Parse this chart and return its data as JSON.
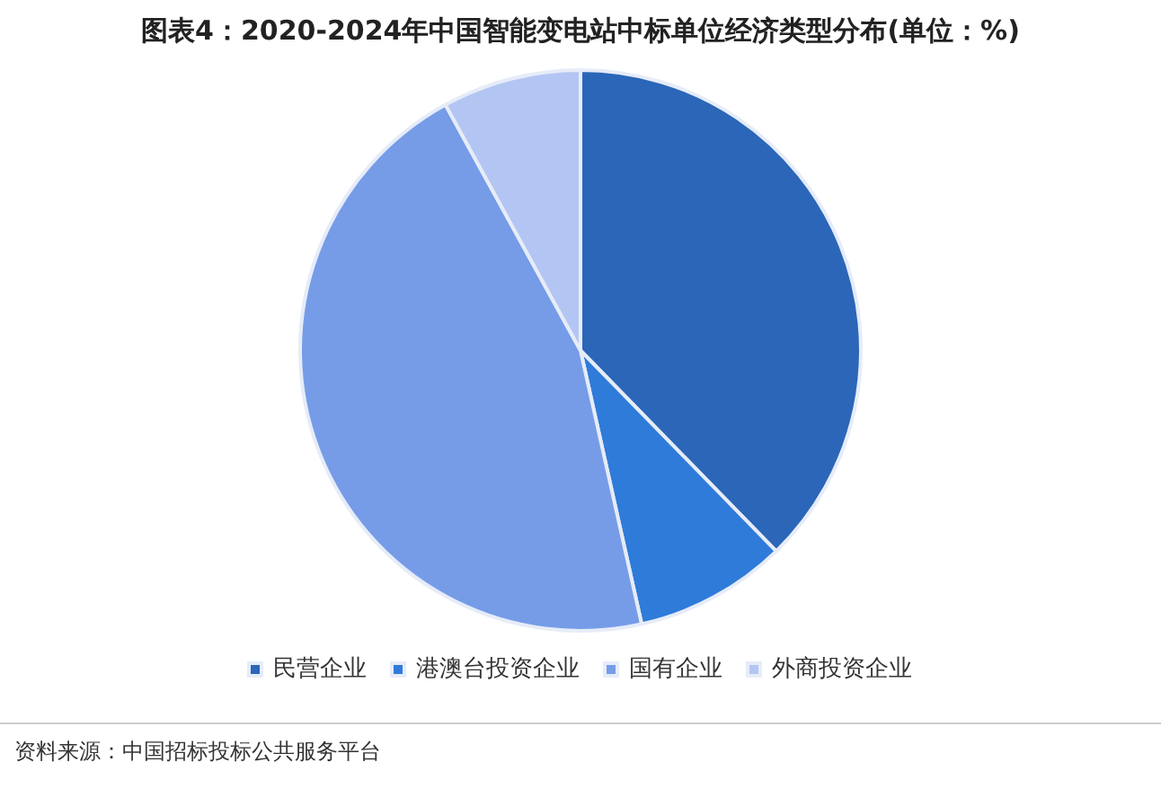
{
  "chart_data": {
    "type": "pie",
    "title": "图表4：2020-2024年中国智能变电站中标单位经济类型分布(单位：%)",
    "categories": [
      "民营企业",
      "港澳台投资企业",
      "国有企业",
      "外商投资企业"
    ],
    "values": [
      37.7,
      8.8,
      45.5,
      8.0
    ],
    "colors": [
      "#2b66b8",
      "#2f7bd9",
      "#769ce8",
      "#b3c5f2"
    ],
    "legend": "bottom",
    "annotations": [
      "资料来源：中国招标投标公共服务平台"
    ]
  }
}
